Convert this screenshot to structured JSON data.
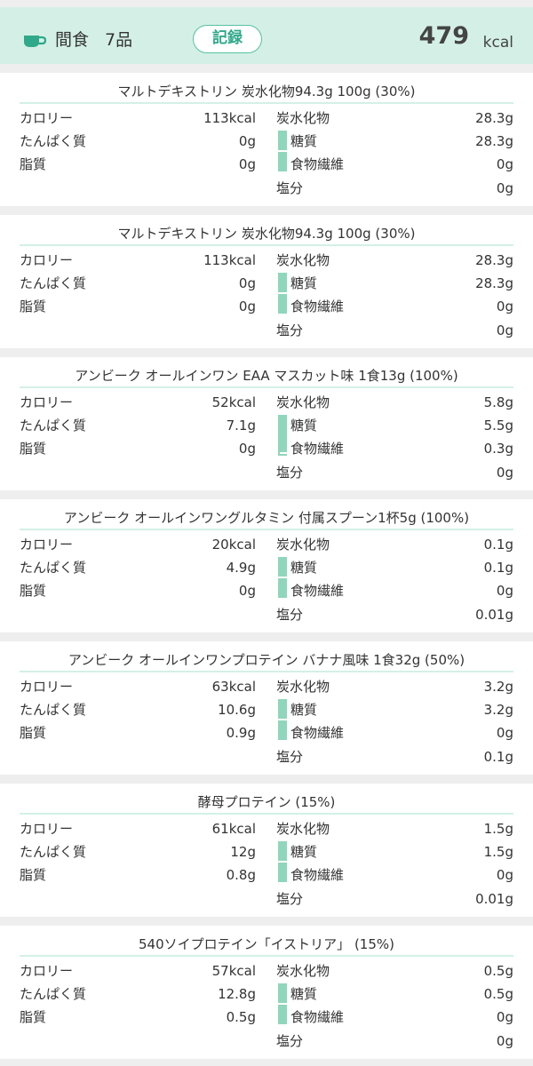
{
  "header": {
    "icon": "coffee-cup-icon",
    "meal_name": "間食",
    "item_count": "7品",
    "record_button": "記録",
    "total_value": "479",
    "total_unit": "kcal"
  },
  "labels": {
    "calorie": "カロリー",
    "protein": "たんぱく質",
    "fat": "脂質",
    "carbs": "炭水化物",
    "sugar": "糖質",
    "fiber": "食物繊維",
    "salt": "塩分"
  },
  "colors": {
    "header_bg": "#d4f0e6",
    "accent": "#2fa98a",
    "bar": "#8fd6bc"
  },
  "items": [
    {
      "name": "マルトデキストリン 炭水化物94.3g 100g (30%)",
      "calorie": "113kcal",
      "protein": "0g",
      "fat": "0g",
      "carbs": "28.3g",
      "sugar": "28.3g",
      "fiber": "0g",
      "salt": "0g"
    },
    {
      "name": "マルトデキストリン 炭水化物94.3g 100g (30%)",
      "calorie": "113kcal",
      "protein": "0g",
      "fat": "0g",
      "carbs": "28.3g",
      "sugar": "28.3g",
      "fiber": "0g",
      "salt": "0g"
    },
    {
      "name": "アンビーク オールインワン EAA マスカット味 1食13g (100%)",
      "calorie": "52kcal",
      "protein": "7.1g",
      "fat": "0g",
      "carbs": "5.8g",
      "sugar": "5.5g",
      "fiber": "0.3g",
      "salt": "0g"
    },
    {
      "name": "アンビーク オールインワングルタミン 付属スプーン1杯5g (100%)",
      "calorie": "20kcal",
      "protein": "4.9g",
      "fat": "0g",
      "carbs": "0.1g",
      "sugar": "0.1g",
      "fiber": "0g",
      "salt": "0.01g"
    },
    {
      "name": "アンビーク オールインワンプロテイン バナナ風味 1食32g (50%)",
      "calorie": "63kcal",
      "protein": "10.6g",
      "fat": "0.9g",
      "carbs": "3.2g",
      "sugar": "3.2g",
      "fiber": "0g",
      "salt": "0.1g"
    },
    {
      "name": "酵母プロテイン (15%)",
      "calorie": "61kcal",
      "protein": "12g",
      "fat": "0.8g",
      "carbs": "1.5g",
      "sugar": "1.5g",
      "fiber": "0g",
      "salt": "0.01g"
    },
    {
      "name": "540ソイプロテイン「イストリア」 (15%)",
      "calorie": "57kcal",
      "protein": "12.8g",
      "fat": "0.5g",
      "carbs": "0.5g",
      "sugar": "0.5g",
      "fiber": "0g",
      "salt": "0g"
    }
  ]
}
